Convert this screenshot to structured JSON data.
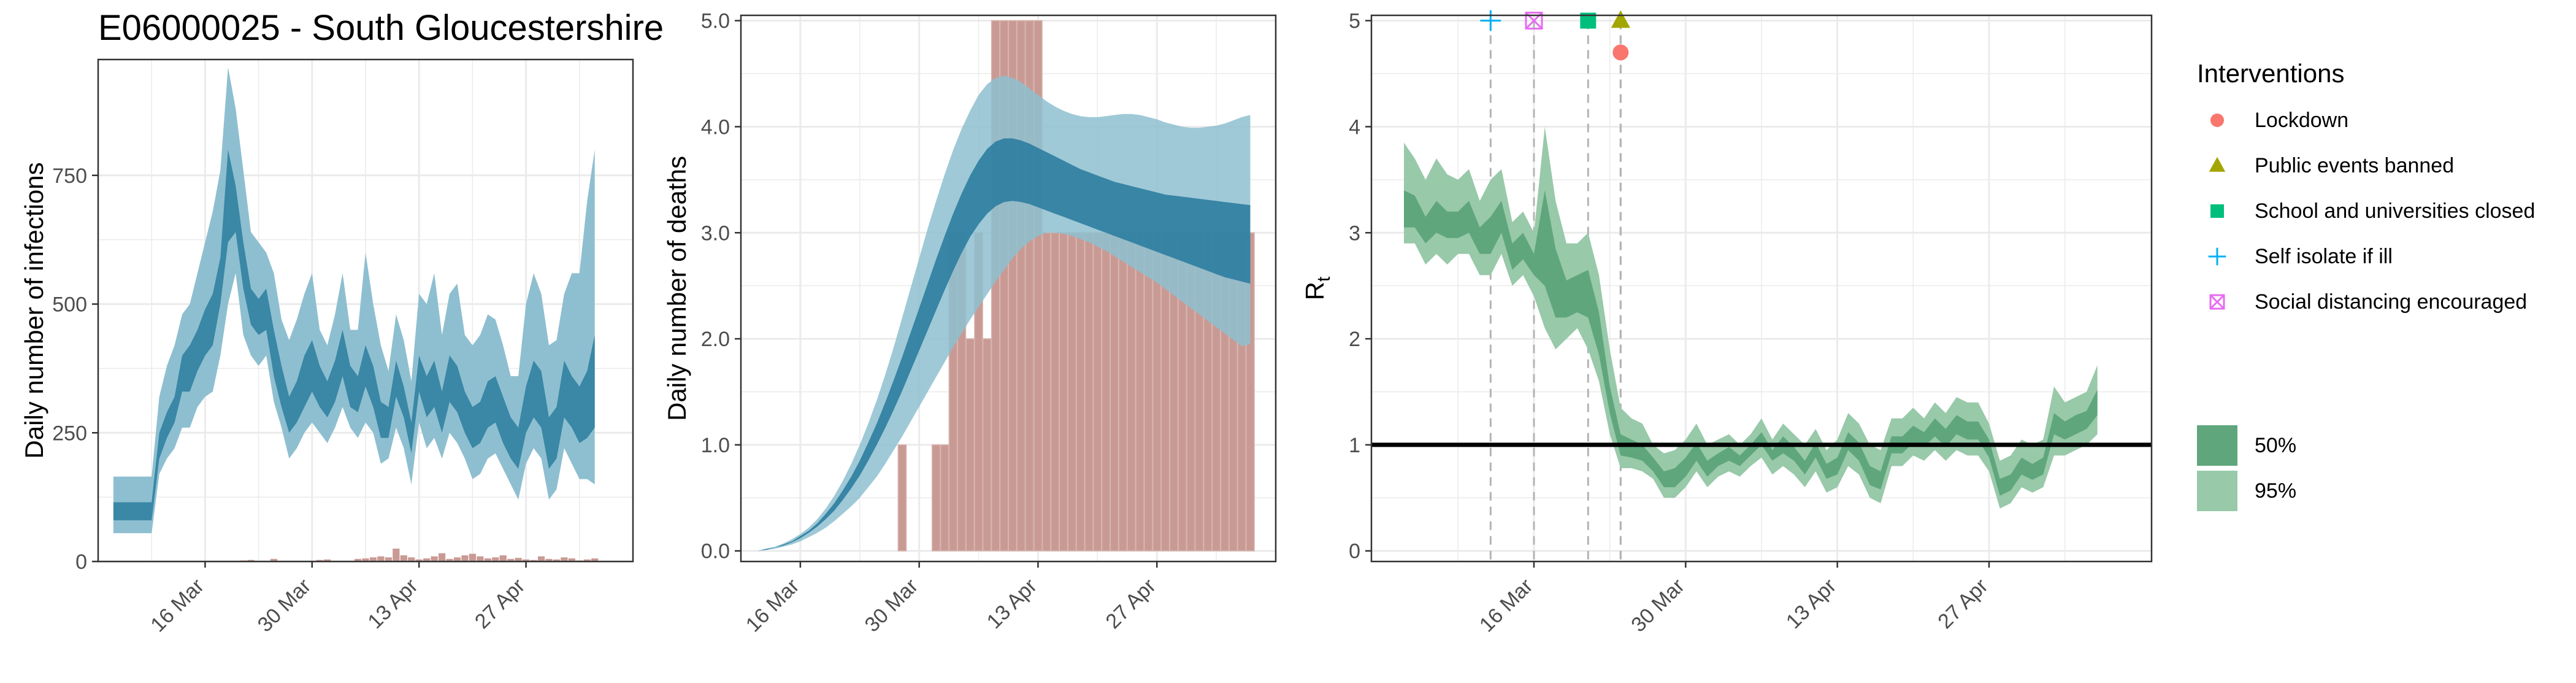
{
  "title": "E06000025 - South Gloucestershire",
  "colors": {
    "infections_band_95": "#8ebfd0",
    "infections_band_50": "#3a87a6",
    "deaths_band_95": "#8ebfd0",
    "deaths_band_50": "#2c7da0",
    "observed_bars": "#c99a94",
    "rt_band_95": "#98c9a9",
    "rt_band_50": "#5fa67d",
    "rt_core": "#3f9060",
    "threshold_line": "#000000",
    "grid": "#ebebeb",
    "intervention_line": "#b3b3b3",
    "lockdown": "#f8766d",
    "public_events": "#a3a500",
    "school": "#00bf7d",
    "self_isolate": "#00b0f6",
    "social_distancing": "#e76bf3"
  },
  "chart_data": [
    {
      "id": "infections",
      "type": "area",
      "title": "E06000025 - South Gloucestershire",
      "xlabel": "",
      "ylabel": "Daily number of infections",
      "x_start": "2020-03-04",
      "x_end": "2020-05-09",
      "xlim": [
        "2020-03-02",
        "2020-05-11"
      ],
      "ylim": [
        0,
        975
      ],
      "y_ticks": [
        0,
        250,
        500,
        750
      ],
      "y_tick_labels": [
        "0",
        "250",
        "500",
        "750"
      ],
      "x_ticks": [
        "2020-03-16",
        "2020-03-30",
        "2020-04-13",
        "2020-04-27"
      ],
      "x_tick_labels": [
        "16 Mar",
        "30 Mar",
        "13 Apr",
        "27 Apr"
      ],
      "grid": true,
      "series": [
        {
          "name": "95%",
          "lower": [
            55,
            55,
            55,
            55,
            55,
            55,
            170,
            200,
            220,
            260,
            260,
            300,
            320,
            330,
            400,
            500,
            560,
            440,
            400,
            380,
            400,
            310,
            260,
            200,
            220,
            250,
            270,
            250,
            230,
            260,
            300,
            260,
            240,
            270,
            250,
            190,
            200,
            260,
            220,
            150,
            270,
            220,
            240,
            200,
            250,
            230,
            200,
            160,
            170,
            200,
            210,
            180,
            150,
            120,
            190,
            220,
            200,
            120,
            140,
            220,
            190,
            160,
            160,
            150
          ],
          "upper": [
            165,
            165,
            165,
            165,
            165,
            165,
            320,
            380,
            420,
            480,
            500,
            560,
            620,
            680,
            760,
            960,
            880,
            760,
            640,
            620,
            600,
            560,
            470,
            430,
            470,
            520,
            560,
            450,
            420,
            480,
            560,
            450,
            450,
            600,
            500,
            420,
            370,
            480,
            430,
            350,
            520,
            500,
            560,
            440,
            520,
            540,
            440,
            420,
            440,
            480,
            470,
            420,
            360,
            360,
            500,
            560,
            520,
            420,
            430,
            520,
            560,
            560,
            700,
            800
          ]
        },
        {
          "name": "50%",
          "lower": [
            80,
            80,
            80,
            80,
            80,
            80,
            200,
            240,
            270,
            330,
            330,
            370,
            400,
            420,
            500,
            620,
            640,
            530,
            460,
            440,
            450,
            360,
            300,
            250,
            270,
            300,
            330,
            300,
            280,
            310,
            360,
            300,
            290,
            340,
            300,
            240,
            240,
            320,
            280,
            210,
            330,
            280,
            300,
            250,
            310,
            290,
            250,
            220,
            230,
            260,
            270,
            230,
            200,
            180,
            250,
            280,
            260,
            180,
            200,
            280,
            260,
            230,
            240,
            260
          ],
          "upper": [
            115,
            115,
            115,
            115,
            115,
            115,
            250,
            290,
            320,
            400,
            420,
            450,
            490,
            520,
            590,
            800,
            730,
            620,
            530,
            510,
            530,
            450,
            380,
            320,
            350,
            400,
            430,
            380,
            350,
            390,
            450,
            380,
            360,
            420,
            380,
            310,
            300,
            390,
            340,
            270,
            400,
            360,
            390,
            330,
            400,
            380,
            330,
            300,
            310,
            350,
            360,
            320,
            280,
            260,
            340,
            390,
            370,
            280,
            300,
            390,
            360,
            340,
            370,
            440
          ]
        }
      ],
      "observed": [
        0,
        0,
        0,
        0,
        0,
        0,
        0,
        0,
        0,
        0,
        0,
        0,
        0,
        0,
        0,
        0,
        0,
        2,
        3,
        0,
        0,
        5,
        0,
        0,
        0,
        0,
        0,
        3,
        4,
        0,
        0,
        0,
        5,
        6,
        8,
        10,
        8,
        25,
        12,
        8,
        4,
        6,
        10,
        16,
        5,
        8,
        12,
        15,
        10,
        6,
        8,
        12,
        5,
        7,
        4,
        3,
        10,
        5,
        4,
        8,
        6,
        2,
        4,
        6
      ]
    },
    {
      "id": "deaths",
      "type": "area",
      "xlabel": "",
      "ylabel": "Daily number of deaths",
      "x_start": "2020-03-11",
      "x_end": "2020-05-09",
      "xlim": [
        "2020-03-09",
        "2020-05-11"
      ],
      "ylim": [
        -0.1,
        5.05
      ],
      "y_ticks": [
        0,
        1,
        2,
        3,
        4,
        5
      ],
      "y_tick_labels": [
        "0.0",
        "1.0",
        "2.0",
        "3.0",
        "4.0",
        "5.0"
      ],
      "x_ticks": [
        "2020-03-16",
        "2020-03-30",
        "2020-04-13",
        "2020-04-27"
      ],
      "x_tick_labels": [
        "16 Mar",
        "30 Mar",
        "13 Apr",
        "27 Apr"
      ],
      "grid": true,
      "bands_95": {
        "lower": [
          0,
          0.01,
          0.02,
          0.04,
          0.06,
          0.09,
          0.13,
          0.17,
          0.22,
          0.28,
          0.35,
          0.42,
          0.5,
          0.6,
          0.7,
          0.82,
          0.95,
          1.08,
          1.22,
          1.36,
          1.5,
          1.64,
          1.78,
          1.92,
          2.05,
          2.18,
          2.3,
          2.42,
          2.54,
          2.65,
          2.76,
          2.85,
          2.92,
          2.97,
          3.0,
          3.0,
          2.99,
          2.97,
          2.94,
          2.91,
          2.87,
          2.83,
          2.78,
          2.73,
          2.68,
          2.63,
          2.58,
          2.53,
          2.47,
          2.41,
          2.35,
          2.29,
          2.23,
          2.17,
          2.11,
          2.05,
          1.99,
          1.93,
          1.95
        ],
        "upper": [
          0,
          0.02,
          0.04,
          0.07,
          0.11,
          0.16,
          0.22,
          0.3,
          0.4,
          0.52,
          0.66,
          0.82,
          1.0,
          1.2,
          1.42,
          1.66,
          1.92,
          2.2,
          2.48,
          2.76,
          3.04,
          3.3,
          3.55,
          3.78,
          3.98,
          4.15,
          4.3,
          4.4,
          4.46,
          4.48,
          4.46,
          4.42,
          4.36,
          4.3,
          4.24,
          4.19,
          4.15,
          4.12,
          4.1,
          4.09,
          4.09,
          4.1,
          4.11,
          4.12,
          4.12,
          4.11,
          4.09,
          4.07,
          4.04,
          4.02,
          4.0,
          3.99,
          3.99,
          4.0,
          4.01,
          4.03,
          4.06,
          4.09,
          4.11
        ]
      },
      "bands_50": {
        "lower": [
          0,
          0.01,
          0.03,
          0.05,
          0.08,
          0.12,
          0.17,
          0.23,
          0.3,
          0.38,
          0.48,
          0.59,
          0.71,
          0.85,
          1.0,
          1.16,
          1.33,
          1.51,
          1.7,
          1.89,
          2.08,
          2.27,
          2.46,
          2.64,
          2.81,
          2.96,
          3.08,
          3.18,
          3.25,
          3.29,
          3.3,
          3.29,
          3.27,
          3.24,
          3.21,
          3.18,
          3.15,
          3.12,
          3.09,
          3.06,
          3.03,
          3.0,
          2.97,
          2.94,
          2.91,
          2.88,
          2.85,
          2.82,
          2.79,
          2.76,
          2.73,
          2.7,
          2.67,
          2.64,
          2.61,
          2.58,
          2.56,
          2.54,
          2.52
        ],
        "upper": [
          0,
          0.02,
          0.03,
          0.06,
          0.09,
          0.14,
          0.19,
          0.26,
          0.35,
          0.45,
          0.57,
          0.7,
          0.85,
          1.02,
          1.2,
          1.4,
          1.61,
          1.83,
          2.06,
          2.29,
          2.52,
          2.75,
          2.97,
          3.18,
          3.37,
          3.54,
          3.68,
          3.79,
          3.86,
          3.89,
          3.89,
          3.87,
          3.84,
          3.8,
          3.76,
          3.72,
          3.68,
          3.64,
          3.6,
          3.57,
          3.54,
          3.51,
          3.48,
          3.46,
          3.44,
          3.42,
          3.4,
          3.38,
          3.36,
          3.35,
          3.34,
          3.33,
          3.32,
          3.31,
          3.3,
          3.29,
          3.28,
          3.27,
          3.26
        ]
      },
      "observed": [
        0,
        0,
        0,
        0,
        0,
        0,
        0,
        0,
        0,
        0,
        0,
        0,
        0,
        0,
        0,
        0,
        0,
        1,
        0,
        0,
        0,
        1,
        1,
        3,
        3,
        2,
        3,
        2,
        5,
        5,
        5,
        5,
        5,
        5,
        3,
        3,
        3,
        3,
        3,
        3,
        3,
        3,
        3,
        3,
        3,
        3,
        3,
        3,
        3,
        3,
        3,
        3,
        3,
        3,
        3,
        3,
        3,
        3,
        3
      ]
    },
    {
      "id": "rt",
      "type": "area",
      "xlabel": "",
      "ylabel": "Rt",
      "x_start": "2020-03-04",
      "x_end": "2020-05-09",
      "xlim": [
        "2020-03-01",
        "2020-05-12"
      ],
      "ylim": [
        -0.1,
        5.05
      ],
      "y_ticks": [
        0,
        1,
        2,
        3,
        4,
        5
      ],
      "y_tick_labels": [
        "0",
        "1",
        "2",
        "3",
        "4",
        "5"
      ],
      "x_ticks": [
        "2020-03-16",
        "2020-03-30",
        "2020-04-13",
        "2020-04-27"
      ],
      "x_tick_labels": [
        "16 Mar",
        "30 Mar",
        "13 Apr",
        "27 Apr"
      ],
      "grid": true,
      "threshold": 1,
      "bands_95": {
        "lower": [
          2.9,
          2.9,
          2.7,
          2.8,
          2.7,
          2.8,
          2.8,
          2.6,
          2.6,
          2.8,
          2.5,
          2.6,
          2.4,
          2.1,
          1.9,
          2.0,
          2.1,
          1.9,
          1.6,
          1.1,
          0.78,
          0.78,
          0.75,
          0.68,
          0.5,
          0.5,
          0.6,
          0.75,
          0.6,
          0.7,
          0.75,
          0.7,
          0.8,
          0.88,
          0.72,
          0.8,
          0.72,
          0.6,
          0.75,
          0.55,
          0.6,
          0.8,
          0.72,
          0.5,
          0.45,
          0.8,
          0.8,
          0.9,
          0.85,
          0.95,
          0.85,
          0.95,
          0.9,
          0.9,
          0.75,
          0.4,
          0.45,
          0.6,
          0.55,
          0.6,
          0.9,
          0.9,
          0.95,
          1.0,
          1.1
        ],
        "upper": [
          3.85,
          3.7,
          3.5,
          3.7,
          3.55,
          3.5,
          3.6,
          3.3,
          3.5,
          3.6,
          3.1,
          3.2,
          3.0,
          4.0,
          3.3,
          2.9,
          2.9,
          3.0,
          2.6,
          1.9,
          1.35,
          1.25,
          1.2,
          1.0,
          0.92,
          0.95,
          1.05,
          1.2,
          1.0,
          1.05,
          1.1,
          1.0,
          1.1,
          1.25,
          1.05,
          1.2,
          1.1,
          1.0,
          1.15,
          0.95,
          1.05,
          1.3,
          1.2,
          1.0,
          0.95,
          1.25,
          1.25,
          1.35,
          1.25,
          1.4,
          1.3,
          1.45,
          1.4,
          1.4,
          1.2,
          0.85,
          0.9,
          1.05,
          1.0,
          1.05,
          1.55,
          1.4,
          1.45,
          1.5,
          1.75
        ]
      },
      "bands_50": {
        "lower": [
          3.05,
          3.05,
          2.9,
          3.0,
          2.95,
          2.95,
          3.0,
          2.8,
          2.8,
          3.0,
          2.65,
          2.75,
          2.6,
          2.5,
          2.2,
          2.2,
          2.25,
          2.2,
          1.85,
          1.3,
          0.9,
          0.88,
          0.85,
          0.75,
          0.6,
          0.6,
          0.7,
          0.85,
          0.7,
          0.8,
          0.85,
          0.8,
          0.9,
          1.0,
          0.85,
          0.92,
          0.85,
          0.72,
          0.88,
          0.68,
          0.72,
          0.95,
          0.85,
          0.62,
          0.58,
          0.92,
          0.92,
          1.02,
          0.98,
          1.08,
          0.98,
          1.1,
          1.05,
          1.05,
          0.88,
          0.52,
          0.57,
          0.72,
          0.67,
          0.72,
          1.1,
          1.05,
          1.1,
          1.15,
          1.28
        ],
        "upper": [
          3.4,
          3.35,
          3.15,
          3.3,
          3.2,
          3.2,
          3.3,
          3.05,
          3.15,
          3.3,
          2.9,
          3.0,
          2.8,
          3.4,
          2.85,
          2.55,
          2.6,
          2.65,
          2.25,
          1.55,
          1.1,
          1.05,
          1.0,
          0.88,
          0.75,
          0.78,
          0.88,
          1.02,
          0.85,
          0.92,
          0.98,
          0.9,
          1.0,
          1.12,
          0.95,
          1.08,
          0.98,
          0.85,
          1.02,
          0.82,
          0.88,
          1.12,
          1.02,
          0.8,
          0.75,
          1.08,
          1.08,
          1.18,
          1.12,
          1.25,
          1.15,
          1.28,
          1.22,
          1.22,
          1.05,
          0.68,
          0.72,
          0.88,
          0.82,
          0.88,
          1.3,
          1.22,
          1.28,
          1.32,
          1.52
        ]
      },
      "interventions": [
        {
          "name": "Self isolate if ill",
          "date": "2020-03-12",
          "marker": "plus",
          "color_key": "self_isolate"
        },
        {
          "name": "Social distancing encouraged",
          "date": "2020-03-16",
          "marker": "boxx",
          "color_key": "social_distancing"
        },
        {
          "name": "School and universities closed",
          "date": "2020-03-21",
          "marker": "square",
          "color_key": "school"
        },
        {
          "name": "Public events banned",
          "date": "2020-03-24",
          "marker": "triangle",
          "color_key": "public_events"
        },
        {
          "name": "Lockdown",
          "date": "2020-03-24",
          "marker": "circle",
          "color_key": "lockdown"
        }
      ]
    }
  ],
  "legend": {
    "interventions_title": "Interventions",
    "interventions": [
      {
        "label": "Lockdown",
        "marker": "circle",
        "color_key": "lockdown"
      },
      {
        "label": "Public events banned",
        "marker": "triangle",
        "color_key": "public_events"
      },
      {
        "label": "School and universities closed",
        "marker": "square",
        "color_key": "school"
      },
      {
        "label": "Self isolate if ill",
        "marker": "plus",
        "color_key": "self_isolate"
      },
      {
        "label": "Social distancing encouraged",
        "marker": "boxx",
        "color_key": "social_distancing"
      }
    ],
    "bands": [
      {
        "label": "50%",
        "color_key": "rt_band_50"
      },
      {
        "label": "95%",
        "color_key": "rt_band_95"
      }
    ]
  }
}
